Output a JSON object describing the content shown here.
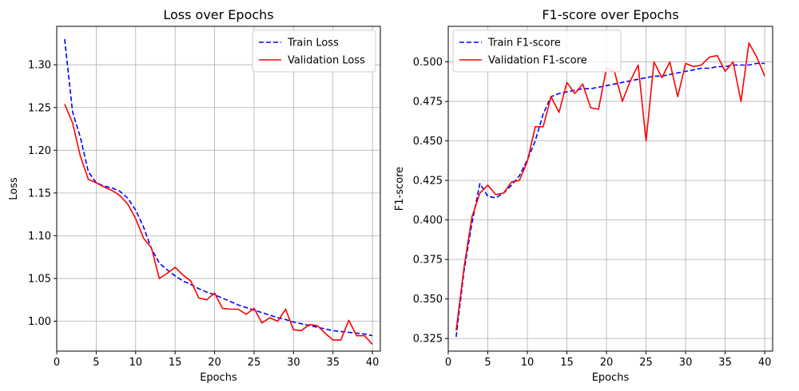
{
  "chart_data": [
    {
      "type": "line",
      "title": "Loss over Epochs",
      "xlabel": "Epochs",
      "ylabel": "Loss",
      "xlim": [
        0,
        41
      ],
      "ylim": [
        0.965,
        1.345
      ],
      "xticks": [
        0,
        5,
        10,
        15,
        20,
        25,
        30,
        35,
        40
      ],
      "yticks": [
        1.0,
        1.05,
        1.1,
        1.15,
        1.2,
        1.25,
        1.3
      ],
      "ytick_decimals": 2,
      "grid": true,
      "legend": "upper-right",
      "x": [
        1,
        2,
        3,
        4,
        5,
        6,
        7,
        8,
        9,
        10,
        11,
        12,
        13,
        14,
        15,
        16,
        17,
        18,
        19,
        20,
        21,
        22,
        23,
        24,
        25,
        26,
        27,
        28,
        29,
        30,
        31,
        32,
        33,
        34,
        35,
        36,
        37,
        38,
        39,
        40
      ],
      "series": [
        {
          "name": "Train Loss",
          "color": "#0000ff",
          "dash": "dashed",
          "values": [
            1.33,
            1.245,
            1.215,
            1.175,
            1.162,
            1.158,
            1.156,
            1.152,
            1.144,
            1.13,
            1.11,
            1.085,
            1.068,
            1.06,
            1.053,
            1.047,
            1.043,
            1.038,
            1.034,
            1.031,
            1.027,
            1.023,
            1.019,
            1.016,
            1.013,
            1.01,
            1.007,
            1.004,
            1.002,
            0.999,
            0.997,
            0.995,
            0.993,
            0.991,
            0.989,
            0.988,
            0.987,
            0.986,
            0.985,
            0.983
          ]
        },
        {
          "name": "Validation Loss",
          "color": "#ff0000",
          "dash": "solid",
          "values": [
            1.254,
            1.232,
            1.193,
            1.166,
            1.162,
            1.157,
            1.153,
            1.147,
            1.137,
            1.12,
            1.097,
            1.086,
            1.05,
            1.056,
            1.063,
            1.054,
            1.047,
            1.027,
            1.025,
            1.033,
            1.015,
            1.014,
            1.014,
            1.008,
            1.015,
            0.998,
            1.004,
            1.0,
            1.014,
            0.99,
            0.989,
            0.996,
            0.995,
            0.986,
            0.978,
            0.978,
            1.001,
            0.983,
            0.983,
            0.973
          ]
        }
      ]
    },
    {
      "type": "line",
      "title": "F1-score over Epochs",
      "xlabel": "Epochs",
      "ylabel": "F1-score",
      "xlim": [
        0,
        41
      ],
      "ylim": [
        0.317,
        0.5225
      ],
      "xticks": [
        0,
        5,
        10,
        15,
        20,
        25,
        30,
        35,
        40
      ],
      "yticks": [
        0.325,
        0.35,
        0.375,
        0.4,
        0.425,
        0.45,
        0.475,
        0.5
      ],
      "ytick_decimals": 3,
      "grid": true,
      "legend": "upper-left",
      "x": [
        1,
        2,
        3,
        4,
        5,
        6,
        7,
        8,
        9,
        10,
        11,
        12,
        13,
        14,
        15,
        16,
        17,
        18,
        19,
        20,
        21,
        22,
        23,
        24,
        25,
        26,
        27,
        28,
        29,
        30,
        31,
        32,
        33,
        34,
        35,
        36,
        37,
        38,
        39,
        40
      ],
      "series": [
        {
          "name": "Train F1-score",
          "color": "#0000ff",
          "dash": "dashed",
          "values": [
            0.326,
            0.368,
            0.398,
            0.423,
            0.415,
            0.414,
            0.417,
            0.422,
            0.428,
            0.438,
            0.45,
            0.467,
            0.478,
            0.48,
            0.481,
            0.482,
            0.483,
            0.483,
            0.484,
            0.485,
            0.486,
            0.487,
            0.488,
            0.489,
            0.49,
            0.491,
            0.491,
            0.492,
            0.493,
            0.494,
            0.495,
            0.496,
            0.496,
            0.497,
            0.497,
            0.498,
            0.498,
            0.498,
            0.499,
            0.499
          ]
        },
        {
          "name": "Validation F1-score",
          "color": "#ff0000",
          "dash": "solid",
          "values": [
            0.33,
            0.37,
            0.402,
            0.417,
            0.422,
            0.416,
            0.417,
            0.424,
            0.425,
            0.437,
            0.459,
            0.459,
            0.478,
            0.468,
            0.487,
            0.48,
            0.486,
            0.471,
            0.47,
            0.496,
            0.494,
            0.475,
            0.488,
            0.498,
            0.45,
            0.5,
            0.49,
            0.5,
            0.478,
            0.499,
            0.497,
            0.498,
            0.503,
            0.504,
            0.494,
            0.5,
            0.475,
            0.512,
            0.503,
            0.491
          ]
        }
      ]
    }
  ]
}
